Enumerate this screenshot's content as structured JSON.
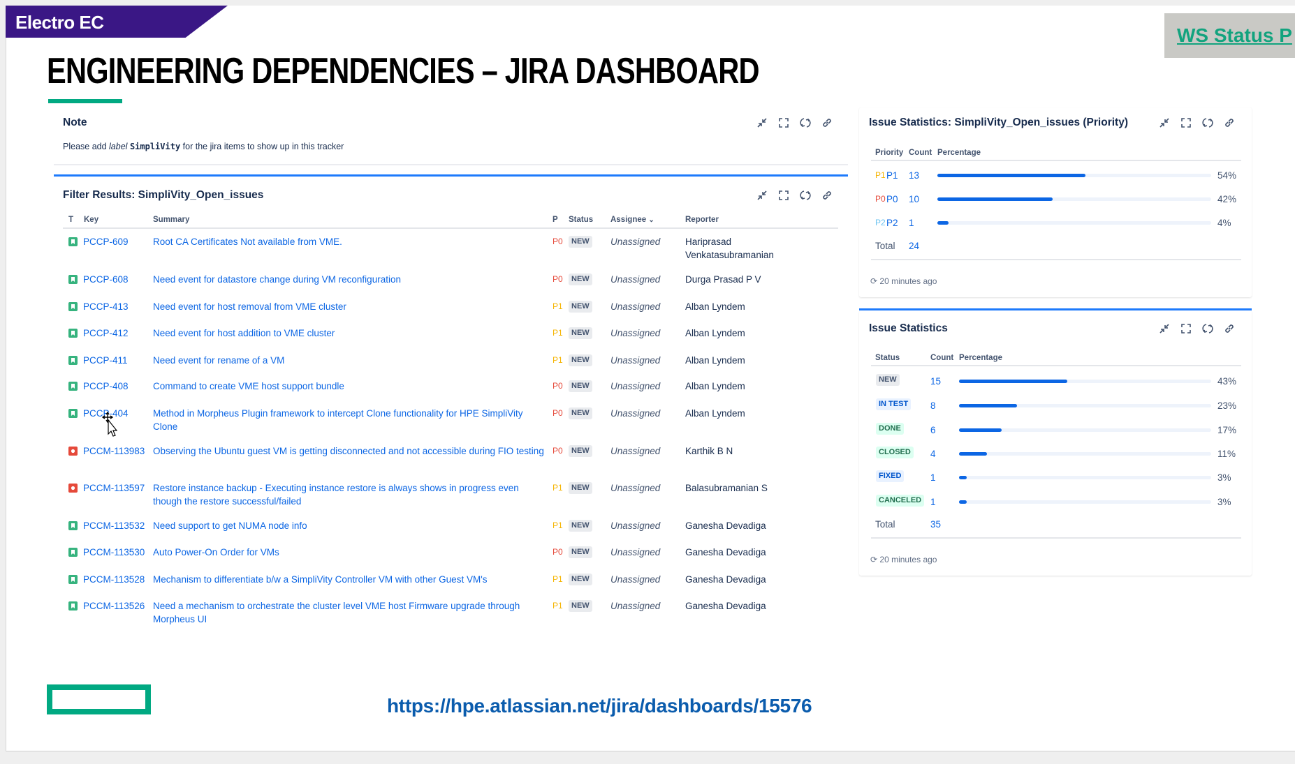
{
  "brand": {
    "name": "Electro EC",
    "color": "#3a1785"
  },
  "ws_status_link": "WS Status P",
  "slide_title": "ENGINEERING DEPENDENCIES – JIRA DASHBOARD",
  "note": {
    "title": "Note",
    "text_before": "Please add ",
    "text_label_word": "label",
    "text_code": "SimpliVity",
    "text_after": " for the jira items to show up in this tracker"
  },
  "gadget_icons": [
    "minimize-icon",
    "expand-icon",
    "refresh-icon",
    "link-icon"
  ],
  "filter": {
    "title": "Filter Results: SimpliVity_Open_issues",
    "columns": {
      "t": "T",
      "key": "Key",
      "summary": "Summary",
      "p": "P",
      "status": "Status",
      "assignee": "Assignee",
      "reporter": "Reporter"
    },
    "rows": [
      {
        "type": "story",
        "key": "PCCP-609",
        "summary": "Root CA Certificates Not available from VME.",
        "p": "P0",
        "status": "NEW",
        "assignee": "Unassigned",
        "reporter": "Hariprasad Venkatasubramanian"
      },
      {
        "type": "story",
        "key": "PCCP-608",
        "summary": "Need event for datastore change during VM reconfiguration",
        "p": "P0",
        "status": "NEW",
        "assignee": "Unassigned",
        "reporter": "Durga Prasad P V"
      },
      {
        "type": "story",
        "key": "PCCP-413",
        "summary": "Need event for host removal from VME cluster",
        "p": "P1",
        "status": "NEW",
        "assignee": "Unassigned",
        "reporter": "Alban Lyndem"
      },
      {
        "type": "story",
        "key": "PCCP-412",
        "summary": "Need event for host addition to VME cluster",
        "p": "P1",
        "status": "NEW",
        "assignee": "Unassigned",
        "reporter": "Alban Lyndem"
      },
      {
        "type": "story",
        "key": "PCCP-411",
        "summary": "Need event for rename of a VM",
        "p": "P1",
        "status": "NEW",
        "assignee": "Unassigned",
        "reporter": "Alban Lyndem"
      },
      {
        "type": "story",
        "key": "PCCP-408",
        "summary": "Command to create VME host support bundle",
        "p": "P0",
        "status": "NEW",
        "assignee": "Unassigned",
        "reporter": "Alban Lyndem"
      },
      {
        "type": "story",
        "key": "PCCP-404",
        "summary": "Method in Morpheus Plugin framework to intercept Clone functionality for HPE SimpliVity Clone",
        "p": "P0",
        "status": "NEW",
        "assignee": "Unassigned",
        "reporter": "Alban Lyndem"
      },
      {
        "type": "bug",
        "key": "PCCM-113983",
        "summary": "Observing the Ubuntu guest VM is getting disconnected and not accessible during FIO testing",
        "p": "P0",
        "status": "NEW",
        "assignee": "Unassigned",
        "reporter": "Karthik B N"
      },
      {
        "type": "bug",
        "key": "PCCM-113597",
        "summary": "Restore instance backup - Executing instance restore is always shows in progress even though the restore successful/failed",
        "p": "P1",
        "status": "NEW",
        "assignee": "Unassigned",
        "reporter": "Balasubramanian S"
      },
      {
        "type": "story",
        "key": "PCCM-113532",
        "summary": "Need support to get NUMA node info",
        "p": "P1",
        "status": "NEW",
        "assignee": "Unassigned",
        "reporter": "Ganesha Devadiga"
      },
      {
        "type": "story",
        "key": "PCCM-113530",
        "summary": "Auto Power-On Order for VMs",
        "p": "P0",
        "status": "NEW",
        "assignee": "Unassigned",
        "reporter": "Ganesha Devadiga"
      },
      {
        "type": "story",
        "key": "PCCM-113528",
        "summary": "Mechanism to differentiate b/w a SimpliVity Controller VM with other Guest VM's",
        "p": "P1",
        "status": "NEW",
        "assignee": "Unassigned",
        "reporter": "Ganesha Devadiga"
      },
      {
        "type": "story",
        "key": "PCCM-113526",
        "summary": "Need a mechanism to orchestrate the cluster level VME host Firmware upgrade through Morpheus UI",
        "p": "P1",
        "status": "NEW",
        "assignee": "Unassigned",
        "reporter": "Ganesha Devadiga"
      }
    ]
  },
  "priority_stats": {
    "title": "Issue Statistics: SimpliVity_Open_issues (Priority)",
    "columns": {
      "label": "Priority",
      "count": "Count",
      "pct": "Percentage"
    },
    "rows": [
      {
        "icon": "P1",
        "label": "P1",
        "count": "13",
        "percent": 54,
        "pct_label": "54%"
      },
      {
        "icon": "P0",
        "label": "P0",
        "count": "10",
        "percent": 42,
        "pct_label": "42%"
      },
      {
        "icon": "P2",
        "label": "P2",
        "count": "1",
        "percent": 4,
        "pct_label": "4%"
      }
    ],
    "total_label": "Total",
    "total": "24",
    "updated": "20 minutes ago"
  },
  "status_stats": {
    "title": "Issue Statistics",
    "columns": {
      "label": "Status",
      "count": "Count",
      "pct": "Percentage"
    },
    "rows": [
      {
        "label": "NEW",
        "style": "new",
        "count": "15",
        "percent": 43,
        "pct_label": "43%"
      },
      {
        "label": "IN TEST",
        "style": "blue",
        "count": "8",
        "percent": 23,
        "pct_label": "23%"
      },
      {
        "label": "DONE",
        "style": "green",
        "count": "6",
        "percent": 17,
        "pct_label": "17%"
      },
      {
        "label": "CLOSED",
        "style": "green",
        "count": "4",
        "percent": 11,
        "pct_label": "11%"
      },
      {
        "label": "FIXED",
        "style": "blue",
        "count": "1",
        "percent": 3,
        "pct_label": "3%"
      },
      {
        "label": "CANCELED",
        "style": "green",
        "count": "1",
        "percent": 3,
        "pct_label": "3%"
      }
    ],
    "total_label": "Total",
    "total": "35",
    "updated": "20 minutes ago"
  },
  "colors": {
    "P0": "#e5493a",
    "P1": "#f5b400",
    "P2": "#6cc3f0",
    "story": "#36b37e",
    "bug": "#e5493a",
    "accent": "#0c66e4",
    "hpe_green": "#01a982"
  },
  "footer_url": "https://hpe.atlassian.net/jira/dashboards/15576"
}
